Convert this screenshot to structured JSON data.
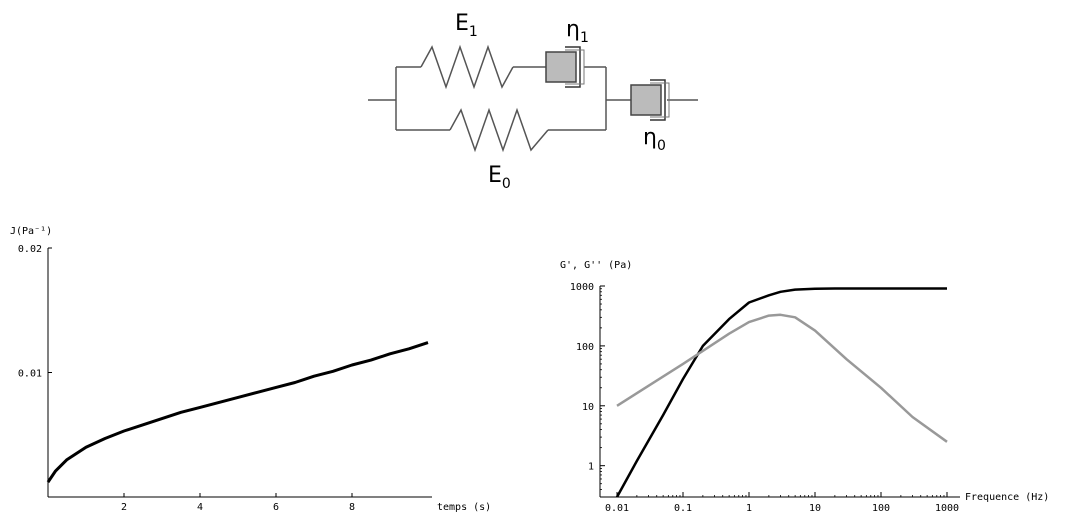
{
  "diagram": {
    "symbols": [
      {
        "base": "E",
        "sub": "1"
      },
      {
        "base": "η",
        "sub": "1"
      },
      {
        "base": "E",
        "sub": "0"
      },
      {
        "base": "η",
        "sub": "0"
      }
    ],
    "element_colors": {
      "line": "#555555",
      "dashpot_fill": "#bbbbbb"
    }
  },
  "chart_data": [
    {
      "type": "line",
      "ylabel": "J(Pa⁻¹)",
      "xlabel": "temps (s)",
      "xlim": [
        0,
        10
      ],
      "ylim": [
        0,
        0.02
      ],
      "x_ticks": [
        2,
        4,
        6,
        8
      ],
      "x_tick_labels": [
        "2",
        "4",
        "6",
        "8"
      ],
      "y_ticks": [
        0.01,
        0.02
      ],
      "y_tick_labels": [
        "0.01",
        "0.02"
      ],
      "series": [
        {
          "color": "#000000",
          "x": [
            0,
            0.2,
            0.5,
            1,
            1.5,
            2,
            2.5,
            3,
            3.5,
            4,
            4.5,
            5,
            5.5,
            6,
            6.5,
            7,
            7.5,
            8,
            8.5,
            9,
            9.5,
            10
          ],
          "y": [
            0.0012,
            0.0021,
            0.003,
            0.004,
            0.0047,
            0.0053,
            0.0058,
            0.0063,
            0.0068,
            0.0072,
            0.0076,
            0.008,
            0.0084,
            0.0088,
            0.0092,
            0.0097,
            0.0101,
            0.0106,
            0.011,
            0.0115,
            0.0119,
            0.0124
          ]
        }
      ],
      "grid": false,
      "legend": false
    },
    {
      "type": "line",
      "ylabel": "G', G'' (Pa)",
      "xlabel": "Frequence (Hz)",
      "xscale": "log",
      "yscale": "log",
      "xlim": [
        0.01,
        1000
      ],
      "ylim": [
        0.3,
        1000
      ],
      "x_ticks": [
        0.01,
        0.1,
        1,
        10,
        100,
        1000
      ],
      "x_tick_labels": [
        "0.01",
        "0.1",
        "1",
        "10",
        "100",
        "1000"
      ],
      "y_ticks": [
        1,
        10,
        100,
        1000
      ],
      "y_tick_labels": [
        "1",
        "10",
        "100",
        "1000"
      ],
      "series": [
        {
          "color": "#000000",
          "x": [
            0.01,
            0.02,
            0.05,
            0.1,
            0.2,
            0.5,
            1,
            2,
            3,
            5,
            10,
            20,
            50,
            100,
            1000
          ],
          "y": [
            0.3,
            1.2,
            7,
            28,
            100,
            280,
            530,
            700,
            800,
            870,
            900,
            910,
            910,
            910,
            910
          ]
        },
        {
          "color": "#999999",
          "x": [
            0.01,
            0.1,
            0.5,
            1,
            2,
            3,
            5,
            10,
            30,
            100,
            300,
            1000
          ],
          "y": [
            10,
            50,
            160,
            250,
            320,
            330,
            300,
            180,
            60,
            20,
            6.5,
            2.5
          ]
        }
      ],
      "grid": false,
      "legend": false
    }
  ]
}
